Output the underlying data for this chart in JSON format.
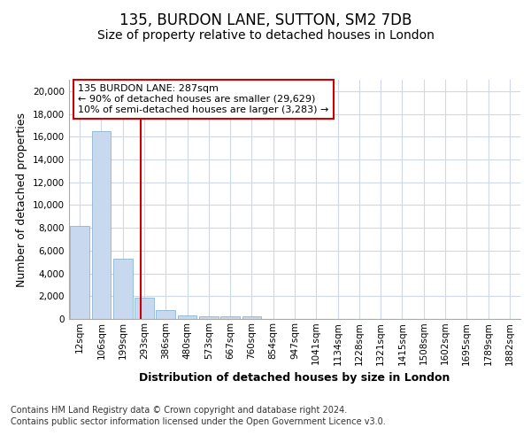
{
  "title": "135, BURDON LANE, SUTTON, SM2 7DB",
  "subtitle": "Size of property relative to detached houses in London",
  "xlabel": "Distribution of detached houses by size in London",
  "ylabel": "Number of detached properties",
  "bar_categories": [
    "12sqm",
    "106sqm",
    "199sqm",
    "293sqm",
    "386sqm",
    "480sqm",
    "573sqm",
    "667sqm",
    "760sqm",
    "854sqm",
    "947sqm",
    "1041sqm",
    "1134sqm",
    "1228sqm",
    "1321sqm",
    "1415sqm",
    "1508sqm",
    "1602sqm",
    "1695sqm",
    "1789sqm",
    "1882sqm"
  ],
  "bar_values": [
    8150,
    16500,
    5300,
    1850,
    780,
    320,
    250,
    215,
    215,
    0,
    0,
    0,
    0,
    0,
    0,
    0,
    0,
    0,
    0,
    0,
    0
  ],
  "bar_color": "#c8d8ee",
  "bar_edge_color": "#7aabce",
  "vline_x": 2.82,
  "vline_color": "#cc0000",
  "annotation_text": "135 BURDON LANE: 287sqm\n← 90% of detached houses are smaller (29,629)\n10% of semi-detached houses are larger (3,283) →",
  "annotation_box_color": "#ffffff",
  "annotation_box_edge_color": "#cc0000",
  "ylim": [
    0,
    21000
  ],
  "yticks": [
    0,
    2000,
    4000,
    6000,
    8000,
    10000,
    12000,
    14000,
    16000,
    18000,
    20000
  ],
  "footer_line1": "Contains HM Land Registry data © Crown copyright and database right 2024.",
  "footer_line2": "Contains public sector information licensed under the Open Government Licence v3.0.",
  "bg_color": "#ffffff",
  "plot_bg_color": "#ffffff",
  "grid_color": "#d0d8e8",
  "title_fontsize": 12,
  "subtitle_fontsize": 10,
  "axis_label_fontsize": 9,
  "tick_fontsize": 7.5,
  "annotation_fontsize": 8,
  "footer_fontsize": 7
}
